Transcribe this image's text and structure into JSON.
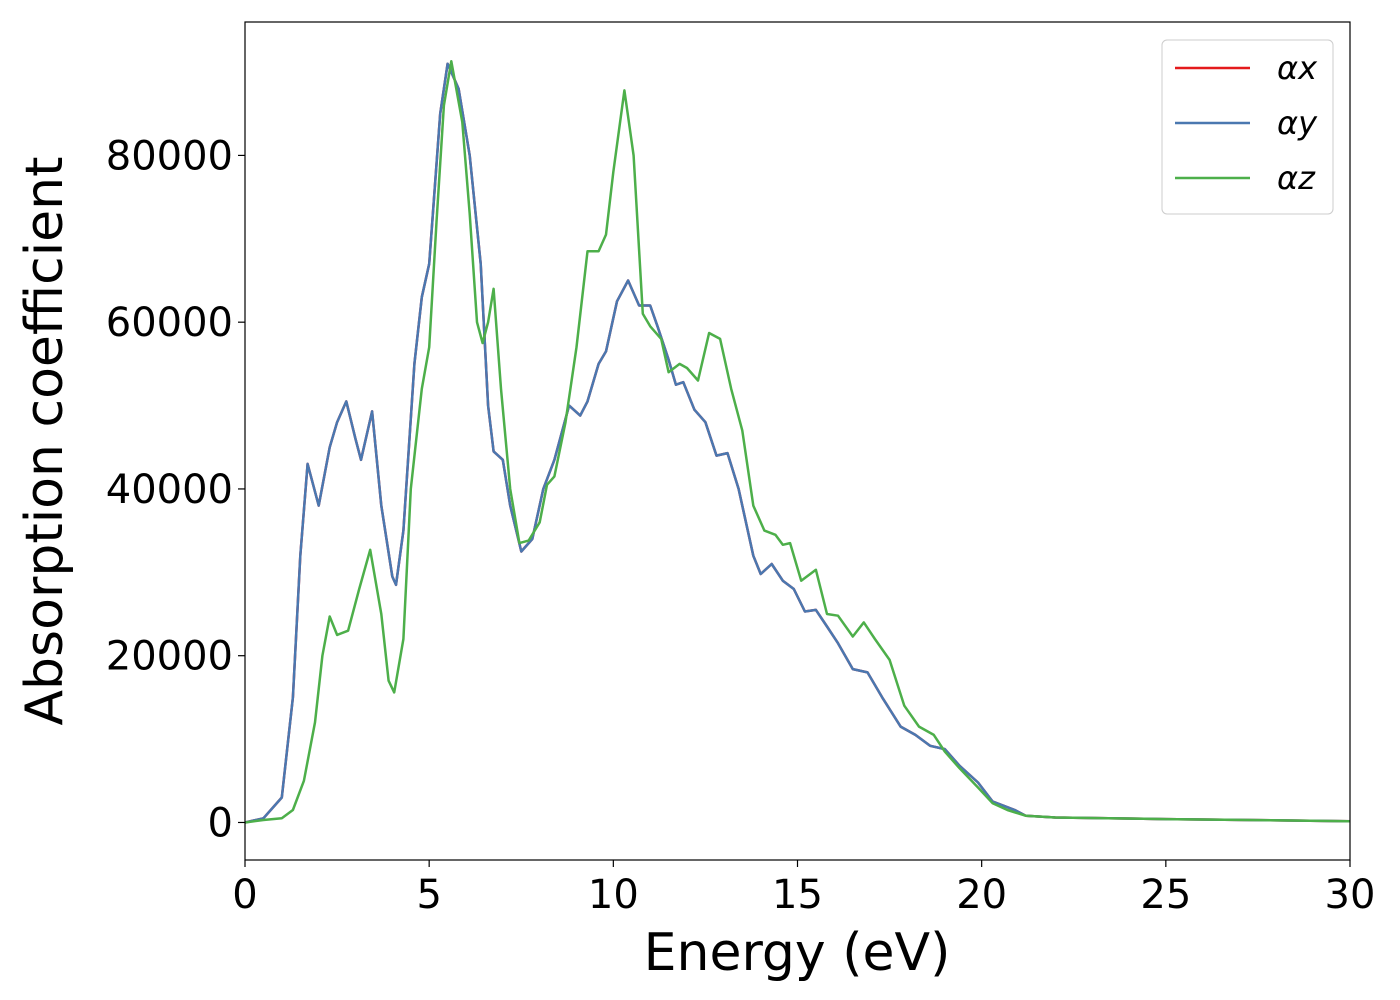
{
  "chart_data": {
    "type": "line",
    "xlabel": "Energy (eV)",
    "ylabel": "Absorption coefficient",
    "xlim": [
      0,
      30
    ],
    "ylim": [
      -4500,
      96000
    ],
    "xticks": [
      0,
      5,
      10,
      15,
      20,
      25,
      30
    ],
    "yticks": [
      0,
      20000,
      40000,
      60000,
      80000
    ],
    "legend": "upper right",
    "grid": false,
    "series": [
      {
        "name": "αx",
        "color": "#e41a1c",
        "x": [
          0,
          0.5,
          1.0,
          1.3,
          1.5,
          1.7,
          2.0,
          2.3,
          2.5,
          2.75,
          3.0,
          3.15,
          3.45,
          3.7,
          4.0,
          4.1,
          4.3,
          4.6,
          4.8,
          5.0,
          5.3,
          5.5,
          5.8,
          6.1,
          6.4,
          6.6,
          6.75,
          7.0,
          7.2,
          7.5,
          7.8,
          8.1,
          8.4,
          8.8,
          9.1,
          9.3,
          9.6,
          9.8,
          10.1,
          10.4,
          10.7,
          11.0,
          11.2,
          11.5,
          11.7,
          11.9,
          12.2,
          12.5,
          12.8,
          13.1,
          13.4,
          13.8,
          14.0,
          14.3,
          14.6,
          14.9,
          15.2,
          15.5,
          15.8,
          16.1,
          16.5,
          16.9,
          17.3,
          17.8,
          18.2,
          18.6,
          19.0,
          19.4,
          19.9,
          20.3,
          20.6,
          20.9,
          21.2,
          22,
          25,
          30
        ],
        "values": [
          0,
          500,
          3000,
          15000,
          32000,
          43000,
          38000,
          45000,
          48000,
          50500,
          46000,
          43500,
          49300,
          38000,
          29500,
          28500,
          35000,
          55000,
          63000,
          67000,
          85000,
          91000,
          88000,
          80000,
          67000,
          50000,
          44500,
          43500,
          38000,
          32500,
          34000,
          40000,
          43500,
          50000,
          48800,
          50500,
          55000,
          56500,
          62500,
          65000,
          62000,
          62000,
          59500,
          55500,
          52500,
          52800,
          49500,
          48000,
          44000,
          44300,
          40000,
          32000,
          29800,
          31000,
          29000,
          28000,
          25300,
          25500,
          23500,
          21500,
          18400,
          18000,
          15000,
          11500,
          10500,
          9200,
          8800,
          6800,
          4800,
          2500,
          2000,
          1500,
          800,
          600,
          400,
          150
        ]
      },
      {
        "name": "αy",
        "color": "#4a78b0",
        "x": [
          0,
          0.5,
          1.0,
          1.3,
          1.5,
          1.7,
          2.0,
          2.3,
          2.5,
          2.75,
          3.0,
          3.15,
          3.45,
          3.7,
          4.0,
          4.1,
          4.3,
          4.6,
          4.8,
          5.0,
          5.3,
          5.5,
          5.8,
          6.1,
          6.4,
          6.6,
          6.75,
          7.0,
          7.2,
          7.5,
          7.8,
          8.1,
          8.4,
          8.8,
          9.1,
          9.3,
          9.6,
          9.8,
          10.1,
          10.4,
          10.7,
          11.0,
          11.2,
          11.5,
          11.7,
          11.9,
          12.2,
          12.5,
          12.8,
          13.1,
          13.4,
          13.8,
          14.0,
          14.3,
          14.6,
          14.9,
          15.2,
          15.5,
          15.8,
          16.1,
          16.5,
          16.9,
          17.3,
          17.8,
          18.2,
          18.6,
          19.0,
          19.4,
          19.9,
          20.3,
          20.6,
          20.9,
          21.2,
          22,
          25,
          30
        ],
        "values": [
          0,
          500,
          3000,
          15000,
          32000,
          43000,
          38000,
          45000,
          48000,
          50500,
          46000,
          43500,
          49300,
          38000,
          29500,
          28500,
          35000,
          55000,
          63000,
          67000,
          85000,
          91000,
          88000,
          80000,
          67000,
          50000,
          44500,
          43500,
          38000,
          32500,
          34000,
          40000,
          43500,
          50000,
          48800,
          50500,
          55000,
          56500,
          62500,
          65000,
          62000,
          62000,
          59500,
          55500,
          52500,
          52800,
          49500,
          48000,
          44000,
          44300,
          40000,
          32000,
          29800,
          31000,
          29000,
          28000,
          25300,
          25500,
          23500,
          21500,
          18400,
          18000,
          15000,
          11500,
          10500,
          9200,
          8800,
          6800,
          4800,
          2500,
          2000,
          1500,
          800,
          600,
          400,
          150
        ]
      },
      {
        "name": "αz",
        "color": "#4daf4a",
        "x": [
          0,
          0.5,
          1.0,
          1.3,
          1.6,
          1.9,
          2.1,
          2.3,
          2.5,
          2.8,
          3.1,
          3.4,
          3.7,
          3.9,
          4.05,
          4.3,
          4.5,
          4.8,
          5.0,
          5.2,
          5.4,
          5.6,
          5.9,
          6.1,
          6.3,
          6.45,
          6.6,
          6.75,
          6.95,
          7.2,
          7.45,
          7.7,
          8.0,
          8.2,
          8.4,
          8.7,
          9.0,
          9.3,
          9.6,
          9.8,
          10.0,
          10.3,
          10.55,
          10.8,
          11.0,
          11.3,
          11.5,
          11.8,
          12.0,
          12.3,
          12.6,
          12.9,
          13.2,
          13.5,
          13.8,
          14.1,
          14.4,
          14.6,
          14.8,
          15.1,
          15.5,
          15.8,
          16.1,
          16.5,
          16.8,
          17.1,
          17.5,
          17.9,
          18.3,
          18.7,
          19.0,
          19.4,
          19.9,
          20.3,
          20.7,
          21.2,
          22,
          25,
          30
        ],
        "values": [
          0,
          300,
          500,
          1500,
          5000,
          12000,
          20000,
          24700,
          22500,
          23000,
          28000,
          32700,
          25000,
          17000,
          15600,
          22000,
          40000,
          52000,
          57000,
          72000,
          86000,
          91300,
          84000,
          73000,
          60000,
          57500,
          60000,
          64000,
          52000,
          40000,
          33500,
          33800,
          36000,
          40500,
          41500,
          48000,
          57000,
          68500,
          68500,
          70500,
          78000,
          87800,
          80000,
          61000,
          59500,
          58000,
          54000,
          55000,
          54500,
          53000,
          58700,
          58000,
          52000,
          47000,
          38000,
          35000,
          34500,
          33300,
          33500,
          29000,
          30300,
          25000,
          24800,
          22300,
          24000,
          22000,
          19500,
          14000,
          11500,
          10500,
          8500,
          6500,
          4200,
          2300,
          1500,
          800,
          600,
          400,
          150
        ]
      }
    ]
  }
}
